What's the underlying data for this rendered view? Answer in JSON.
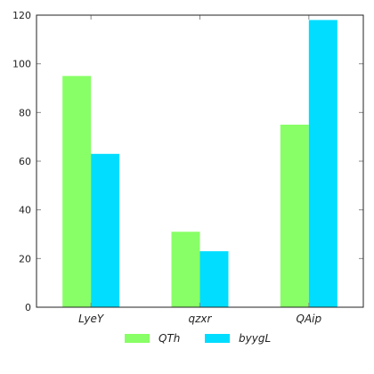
{
  "chart_data": {
    "type": "bar",
    "categories": [
      "LyeY",
      "qzxr",
      "QAip"
    ],
    "series": [
      {
        "name": "QTh",
        "color": "#88ff66",
        "values": [
          95,
          31,
          75
        ]
      },
      {
        "name": "byygL",
        "color": "#00ddff",
        "values": [
          63,
          23,
          118
        ]
      }
    ],
    "ylim": [
      0,
      120
    ],
    "yticks": [
      0,
      20,
      40,
      60,
      80,
      100,
      120
    ],
    "grid": false,
    "legend_position": "bottom-center",
    "title": "",
    "xlabel": "",
    "ylabel": ""
  }
}
